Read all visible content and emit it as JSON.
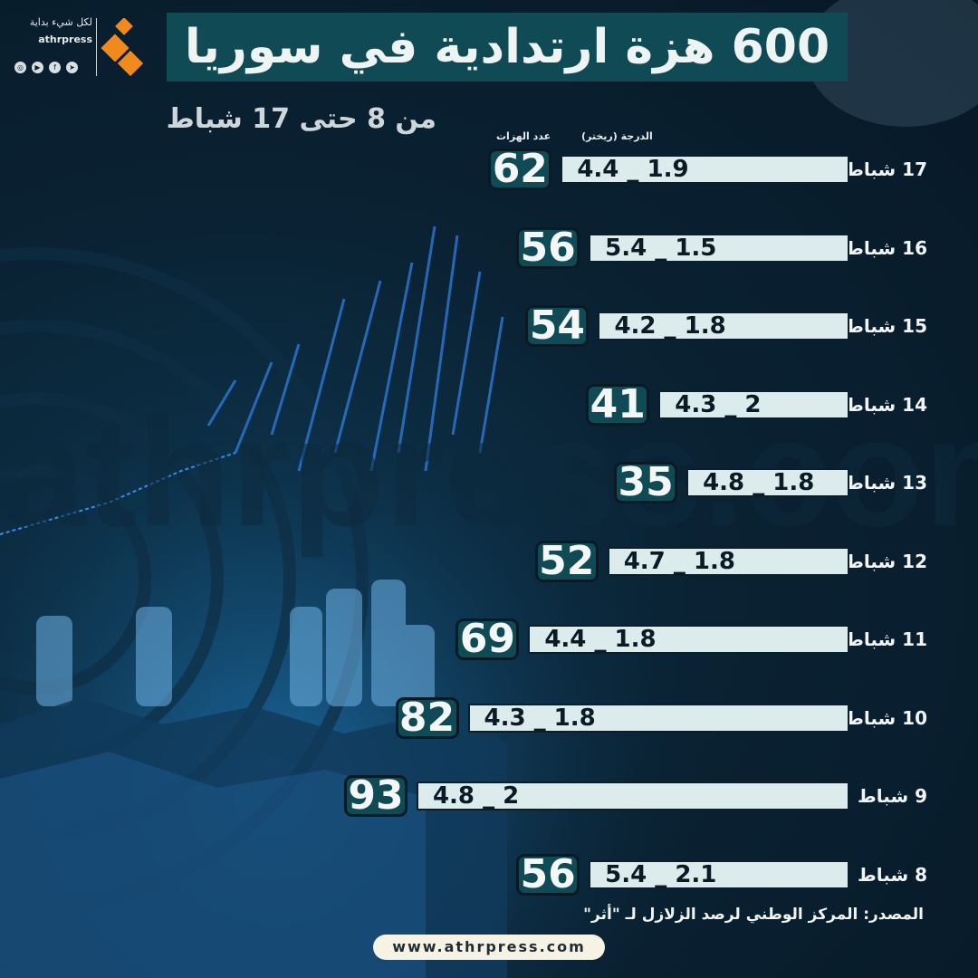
{
  "header": {
    "title": "600 هزة ارتدادية في سوريا",
    "subtitle": "من 8  حتى 17 شباط"
  },
  "brand": {
    "tagline": "لكل شيء بداية",
    "site": "athrpress",
    "social_icons": [
      "instagram-icon",
      "youtube-icon",
      "facebook-icon",
      "telegram-icon"
    ],
    "logo_color": "#f08a1c"
  },
  "columns": {
    "count_header": "عدد الهزات",
    "range_header": "الدرجة (ريختر)"
  },
  "chart_data": {
    "type": "bar",
    "categories": [
      "17 شباط",
      "16 شباط",
      "15 شباط",
      "14 شباط",
      "13 شباط",
      "12 شباط",
      "11 شباط",
      "10 شباط",
      "9 شباط",
      "8 شباط"
    ],
    "series": [
      {
        "name": "عدد الهزات",
        "values": [
          62,
          56,
          54,
          41,
          35,
          52,
          69,
          82,
          93,
          56
        ]
      }
    ],
    "range_labels": [
      "4.4 _ 1.9",
      "5.4 _ 1.5",
      "4.2 _ 1.8",
      "4.3 _ 2",
      "4.8 _ 1.8",
      "4.7 _ 1.8",
      "4.4 _ 1.8",
      "4.3 _ 1.8",
      "4.8 _ 2",
      "5.4 _ 2.1"
    ],
    "xlim": [
      0,
      100
    ],
    "orientation": "horizontal",
    "bar_color": "#dcecec",
    "badge_color": "#0f4a55",
    "grid": false
  },
  "footer": {
    "source": "المصدر: المركز الوطني لرصد الزلازل لـ \"أثر\"",
    "website": "www.athrpress.com"
  },
  "colors": {
    "background": "#0a2233",
    "accent": "#0f4a55"
  }
}
